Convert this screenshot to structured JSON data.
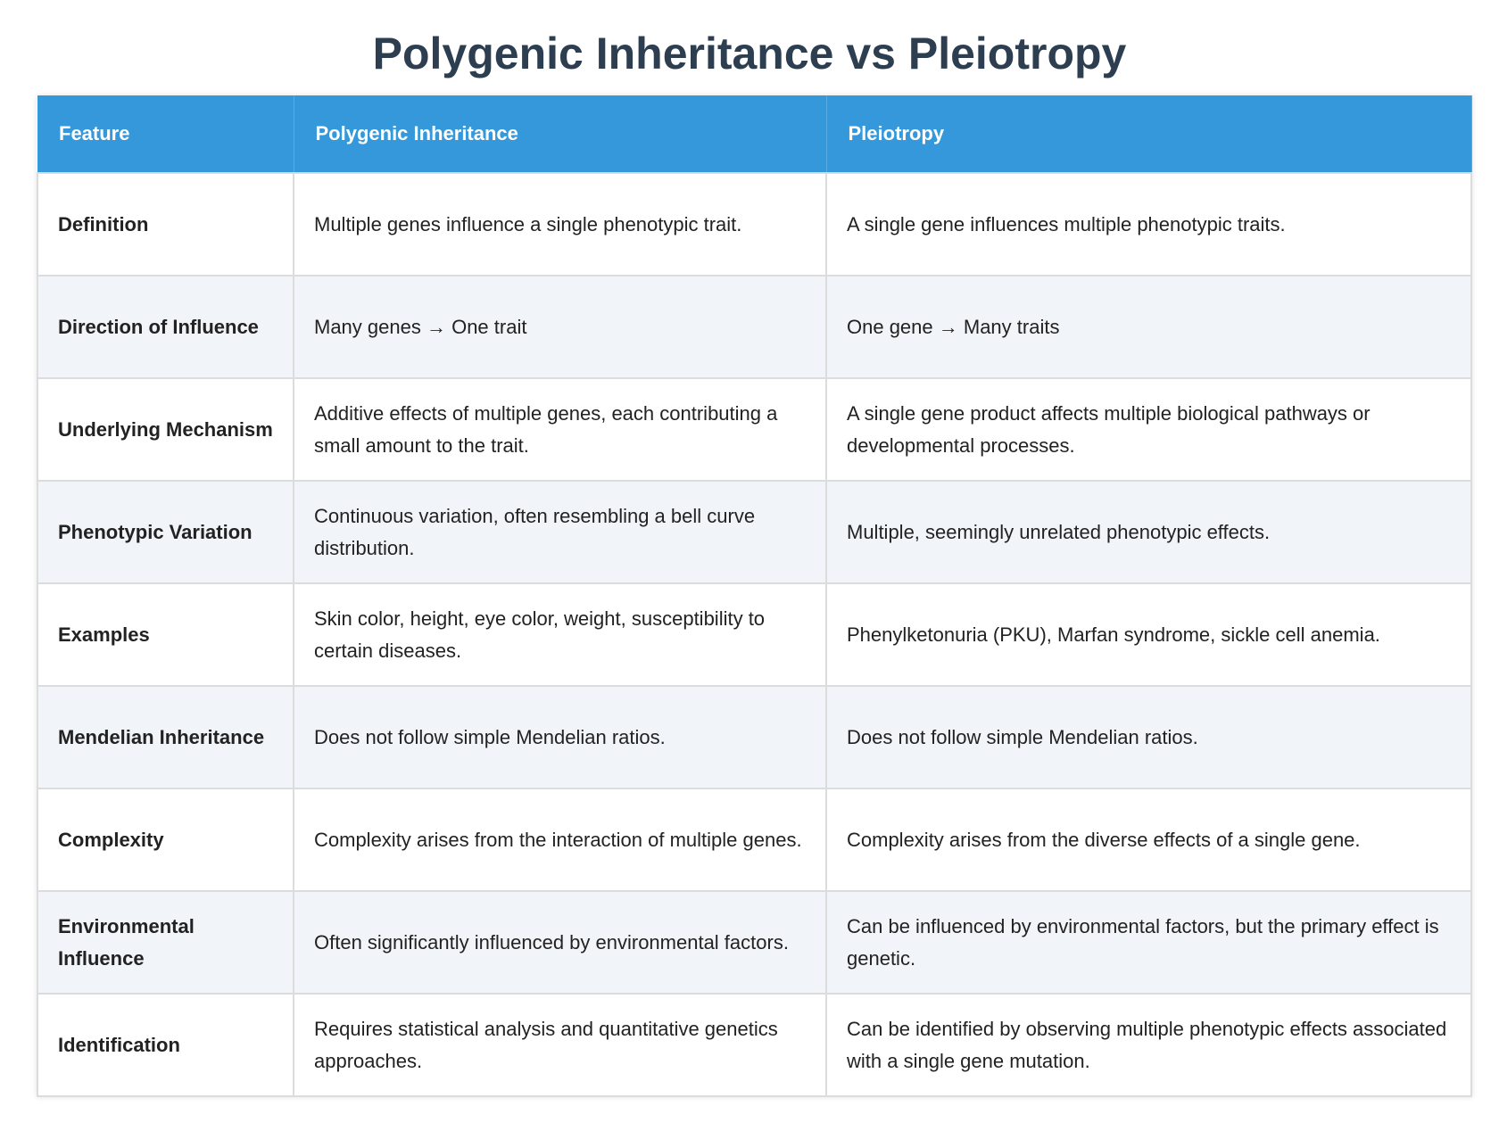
{
  "title": "Polygenic Inheritance vs Pleiotropy",
  "headers": [
    "Feature",
    "Polygenic Inheritance",
    "Pleiotropy"
  ],
  "rows": [
    {
      "feature": "Definition",
      "polygenic": "Multiple genes influence a single phenotypic trait.",
      "pleiotropy": "A single gene influences multiple phenotypic traits."
    },
    {
      "feature": "Direction of Influence",
      "polygenic": "Many genes → One trait",
      "pleiotropy": "One gene → Many traits"
    },
    {
      "feature": "Underlying Mechanism",
      "polygenic": "Additive effects of multiple genes, each contributing a small amount to the trait.",
      "pleiotropy": "A single gene product affects multiple biological pathways or developmental processes."
    },
    {
      "feature": "Phenotypic Variation",
      "polygenic": "Continuous variation, often resembling a bell curve distribution.",
      "pleiotropy": "Multiple, seemingly unrelated phenotypic effects."
    },
    {
      "feature": "Examples",
      "polygenic": "Skin color, height, eye color, weight, susceptibility to certain diseases.",
      "pleiotropy": "Phenylketonuria (PKU), Marfan syndrome, sickle cell anemia."
    },
    {
      "feature": "Mendelian Inheritance",
      "polygenic": "Does not follow simple Mendelian ratios.",
      "pleiotropy": "Does not follow simple Mendelian ratios."
    },
    {
      "feature": "Complexity",
      "polygenic": "Complexity arises from the interaction of multiple genes.",
      "pleiotropy": "Complexity arises from the diverse effects of a single gene."
    },
    {
      "feature": "Environmental Influence",
      "polygenic": "Often significantly influenced by environmental factors.",
      "pleiotropy": "Can be influenced by environmental factors, but the primary effect is genetic."
    },
    {
      "feature": "Identification",
      "polygenic": "Requires statistical analysis and quantitative genetics approaches.",
      "pleiotropy": "Can be identified by observing multiple phenotypic effects associated with a single gene mutation."
    }
  ]
}
